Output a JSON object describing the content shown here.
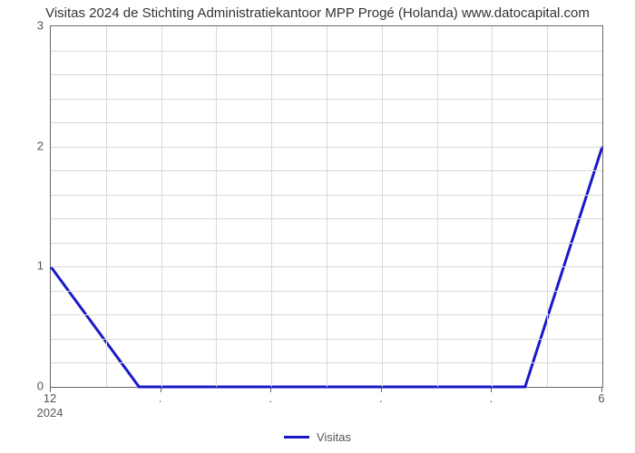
{
  "chart": {
    "type": "line",
    "title": "Visitas 2024 de Stichting Administratiekantoor MPP Progé (Holanda) www.datocapital.com",
    "title_fontsize": 15,
    "title_color": "#333333",
    "background_color": "#ffffff",
    "axis_color": "#666666",
    "grid_color": "#d9d9d9",
    "y": {
      "min": 0,
      "max": 3,
      "ticks": [
        0,
        1,
        2,
        3
      ],
      "label_fontsize": 13,
      "label_color": "#555555"
    },
    "x": {
      "min": 0,
      "max": 10,
      "major_gridline_indices": [
        0,
        1,
        2,
        3,
        4,
        5,
        6,
        7,
        8,
        9,
        10
      ],
      "tick_labels": [
        {
          "pos": 0,
          "label": "12",
          "sublabel": "2024"
        },
        {
          "pos": 2,
          "label": "."
        },
        {
          "pos": 4,
          "label": "."
        },
        {
          "pos": 6,
          "label": "."
        },
        {
          "pos": 8,
          "label": "."
        },
        {
          "pos": 10,
          "label": "6"
        }
      ],
      "label_fontsize": 13,
      "label_color": "#555555"
    },
    "series": {
      "name": "Visitas",
      "color": "#1919c8",
      "stroke_width": 3,
      "points": [
        {
          "x": 0,
          "y": 1.0
        },
        {
          "x": 1.6,
          "y": 0.0
        },
        {
          "x": 8.6,
          "y": 0.0
        },
        {
          "x": 10.0,
          "y": 2.0
        }
      ]
    },
    "legend": {
      "swatch_color": "#1919c8",
      "label": "Visitas",
      "fontsize": 13,
      "text_color": "#555555"
    }
  }
}
